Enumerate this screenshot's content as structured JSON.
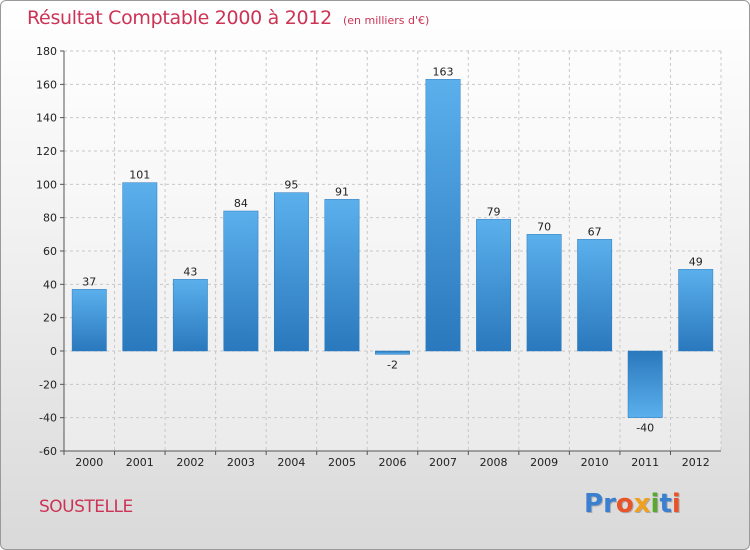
{
  "header": {
    "title": "Résultat Comptable 2000 à 2012",
    "subtitle": "(en milliers d'€)"
  },
  "commune": "SOUSTELLE",
  "logo": {
    "letters": [
      "P",
      "r",
      "o",
      "x",
      "i",
      "t",
      "i"
    ],
    "colors": [
      "#3a7fd0",
      "#3a7fd0",
      "#e8542a",
      "#f0a020",
      "#5aa830",
      "#3a7fd0",
      "#e8542a"
    ]
  },
  "chart_data": {
    "type": "bar",
    "categories": [
      "2000",
      "2001",
      "2002",
      "2003",
      "2004",
      "2005",
      "2006",
      "2007",
      "2008",
      "2009",
      "2010",
      "2011",
      "2012"
    ],
    "values": [
      37,
      101,
      43,
      84,
      95,
      91,
      -2,
      163,
      79,
      70,
      67,
      -40,
      49
    ],
    "data_labels": [
      "37",
      "101",
      "43",
      "84",
      "95",
      "91",
      "-2",
      "163",
      "79",
      "70",
      "67",
      "-40",
      "49"
    ],
    "ylim": [
      -60,
      180
    ],
    "yticks": [
      -60,
      -40,
      -20,
      0,
      20,
      40,
      60,
      80,
      100,
      120,
      140,
      160,
      180
    ],
    "grid": true,
    "bar_color": "#3d93d6",
    "title": "Résultat Comptable 2000 à 2012",
    "xlabel": "",
    "ylabel": ""
  }
}
